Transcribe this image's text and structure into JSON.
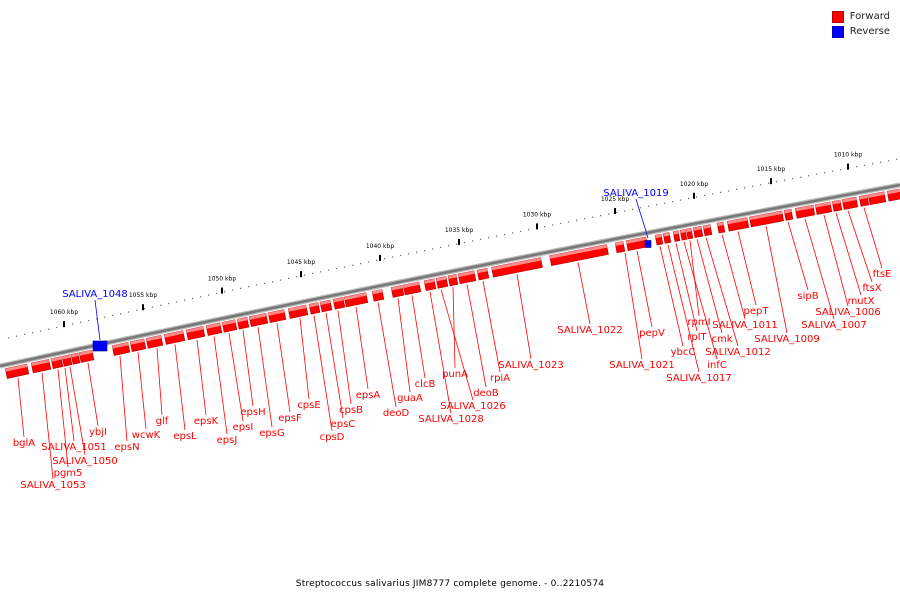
{
  "legend": {
    "forward_label": "Forward",
    "reverse_label": "Reverse",
    "forward_color": "#ff0000",
    "reverse_color": "#0000ff"
  },
  "caption": "Streptococcus salivarius JIM8777 complete genome. - 0..2210574",
  "ticks": [
    "1060 kbp",
    "1055 kbp",
    "1050 kbp",
    "1045 kbp",
    "1040 kbp",
    "1035 kbp",
    "1030 kbp",
    "1025 kbp",
    "1020 kbp",
    "1015 kbp",
    "1010 kbp"
  ],
  "reverse_genes": [
    "SALIVA_1048",
    "SALIVA_1019"
  ],
  "forward_genes": [
    "bglA",
    "SALIVA_1053",
    "pgm5",
    "SALIVA_1051",
    "SALIVA_1050",
    "ybjI",
    "epsN",
    "wcwK",
    "glf",
    "epsL",
    "epsK",
    "epsJ",
    "epsI",
    "epsH",
    "epsG",
    "epsF",
    "cpsE",
    "cpsD",
    "epsC",
    "cpsB",
    "epsA",
    "deoD",
    "guaA",
    "clcB",
    "SALIVA_1028",
    "SALIVA_1026",
    "punA",
    "deoB",
    "rpiA",
    "SALIVA_1023",
    "SALIVA_1022",
    "SALIVA_1021",
    "pepV",
    "ybcC",
    "SALIVA_1017",
    "rplT",
    "infC",
    "rpmI",
    "cmk",
    "SALIVA_1012",
    "SALIVA_1011",
    "pepT",
    "SALIVA_1009",
    "sipB",
    "SALIVA_1007",
    "SALIVA_1006",
    "mutX",
    "ftsX",
    "ftsE"
  ]
}
